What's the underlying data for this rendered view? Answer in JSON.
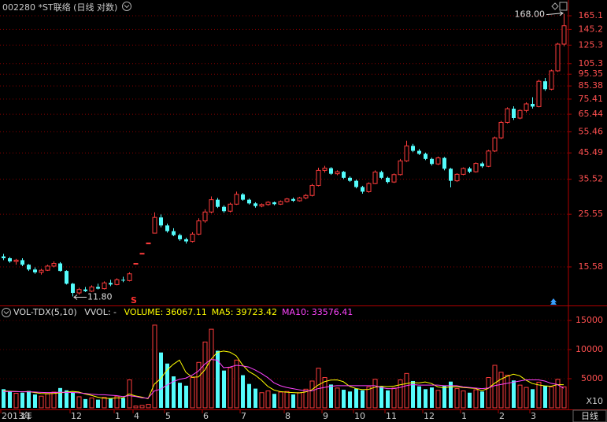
{
  "chart_data": [
    {
      "type": "candlestick",
      "title": "002280 *ST联络 (日线 对数)",
      "log_scale": true,
      "grid": true,
      "up_color": "#ff3c3c",
      "down_color": "#54fcfc",
      "ylim": [
        10.84,
        170.1
      ],
      "yticks": [
        165.1,
        145.2,
        125.3,
        105.3,
        95.35,
        85.38,
        75.41,
        65.44,
        55.46,
        45.49,
        35.52,
        25.55,
        15.58
      ],
      "high_label": {
        "value": 168.0,
        "label": "168.00"
      },
      "low_label": {
        "value": 11.8,
        "label": "11.80"
      },
      "signal_label": "S",
      "period_label": "日线",
      "categories": [
        "2013年",
        null,
        null,
        "11",
        null,
        null,
        null,
        null,
        null,
        null,
        null,
        "12",
        null,
        null,
        null,
        null,
        null,
        null,
        "1",
        null,
        null,
        "4",
        null,
        null,
        null,
        null,
        "5",
        null,
        null,
        null,
        null,
        null,
        "6",
        null,
        null,
        null,
        null,
        null,
        "7",
        null,
        null,
        null,
        null,
        null,
        null,
        "8",
        null,
        null,
        null,
        null,
        null,
        "9",
        null,
        null,
        null,
        null,
        "10",
        null,
        null,
        null,
        null,
        "11",
        null,
        null,
        null,
        null,
        null,
        "12",
        null,
        null,
        null,
        null,
        null,
        "1",
        null,
        null,
        null,
        null,
        null,
        "2",
        null,
        null,
        null,
        null,
        "3",
        null,
        null,
        null,
        null,
        null
      ],
      "ohlc": [
        [
          17.2,
          17.6,
          16.6,
          16.9
        ],
        [
          16.9,
          17.1,
          16.2,
          16.4
        ],
        [
          16.4,
          16.8,
          15.9,
          16.6
        ],
        [
          16.6,
          16.9,
          15.7,
          15.9
        ],
        [
          15.9,
          16.0,
          15.0,
          15.2
        ],
        [
          15.2,
          15.5,
          14.6,
          14.8
        ],
        [
          14.8,
          15.3,
          14.5,
          15.1
        ],
        [
          15.1,
          15.9,
          15.0,
          15.7
        ],
        [
          15.7,
          16.4,
          15.5,
          16.1
        ],
        [
          16.1,
          16.3,
          14.9,
          15.0
        ],
        [
          15.0,
          15.1,
          13.2,
          13.3
        ],
        [
          13.3,
          13.4,
          11.8,
          12.2
        ],
        [
          12.2,
          12.8,
          12.0,
          12.6
        ],
        [
          12.6,
          12.9,
          12.3,
          12.4
        ],
        [
          12.4,
          13.1,
          12.3,
          12.9
        ],
        [
          12.9,
          13.3,
          12.6,
          12.7
        ],
        [
          12.7,
          13.6,
          12.6,
          13.4
        ],
        [
          13.4,
          13.8,
          13.0,
          13.2
        ],
        [
          13.2,
          14.0,
          13.1,
          13.8
        ],
        [
          13.8,
          14.2,
          13.5,
          13.7
        ],
        [
          13.7,
          14.8,
          13.6,
          14.6
        ],
        [
          16.1,
          16.1,
          16.1,
          16.1
        ],
        [
          17.7,
          17.7,
          17.7,
          17.7
        ],
        [
          19.5,
          19.5,
          19.5,
          19.5
        ],
        [
          21.4,
          26.0,
          21.4,
          24.8
        ],
        [
          24.8,
          25.5,
          22.6,
          23.0
        ],
        [
          23.0,
          23.4,
          21.5,
          21.8
        ],
        [
          21.8,
          22.4,
          20.8,
          21.0
        ],
        [
          21.0,
          21.3,
          19.9,
          20.2
        ],
        [
          20.2,
          20.5,
          19.4,
          19.8
        ],
        [
          19.8,
          21.6,
          19.6,
          21.2
        ],
        [
          21.2,
          24.6,
          21.0,
          24.0
        ],
        [
          24.0,
          26.8,
          23.6,
          26.1
        ],
        [
          26.1,
          30.2,
          25.8,
          29.3
        ],
        [
          29.3,
          29.8,
          27.1,
          27.4
        ],
        [
          27.4,
          27.8,
          25.9,
          26.3
        ],
        [
          26.3,
          28.5,
          26.0,
          28.1
        ],
        [
          28.1,
          31.6,
          27.9,
          30.8
        ],
        [
          30.8,
          31.2,
          29.0,
          29.3
        ],
        [
          29.3,
          29.6,
          28.0,
          28.3
        ],
        [
          28.3,
          28.6,
          27.2,
          27.6
        ],
        [
          27.6,
          28.3,
          27.3,
          28.0
        ],
        [
          28.0,
          28.9,
          27.7,
          28.6
        ],
        [
          28.6,
          28.8,
          27.8,
          28.1
        ],
        [
          28.1,
          29.1,
          27.9,
          28.8
        ],
        [
          28.8,
          29.8,
          28.5,
          29.5
        ],
        [
          29.5,
          29.9,
          28.7,
          29.0
        ],
        [
          29.0,
          30.1,
          28.8,
          29.8
        ],
        [
          29.8,
          30.9,
          29.4,
          30.5
        ],
        [
          30.5,
          34.0,
          30.2,
          33.5
        ],
        [
          33.5,
          39.6,
          33.2,
          38.6
        ],
        [
          38.6,
          40.3,
          37.8,
          39.4
        ],
        [
          39.4,
          39.8,
          37.0,
          37.4
        ],
        [
          37.4,
          38.6,
          36.9,
          38.1
        ],
        [
          38.1,
          38.4,
          35.6,
          36.0
        ],
        [
          36.0,
          36.5,
          34.6,
          35.0
        ],
        [
          35.0,
          35.4,
          32.6,
          33.0
        ],
        [
          33.0,
          33.4,
          31.0,
          31.6
        ],
        [
          31.6,
          34.5,
          31.3,
          34.1
        ],
        [
          34.1,
          38.6,
          33.9,
          38.0
        ],
        [
          38.0,
          38.5,
          35.6,
          36.0
        ],
        [
          36.0,
          36.4,
          34.1,
          34.6
        ],
        [
          34.6,
          37.5,
          34.3,
          37.1
        ],
        [
          37.1,
          43.0,
          36.8,
          42.2
        ],
        [
          42.2,
          51.0,
          41.8,
          48.6
        ],
        [
          48.6,
          49.5,
          45.8,
          46.4
        ],
        [
          46.4,
          47.2,
          44.6,
          45.1
        ],
        [
          45.1,
          45.6,
          42.5,
          43.0
        ],
        [
          43.0,
          43.5,
          40.4,
          41.0
        ],
        [
          41.0,
          44.0,
          40.6,
          43.4
        ],
        [
          43.4,
          43.8,
          38.6,
          39.2
        ],
        [
          39.2,
          39.5,
          32.9,
          35.0
        ],
        [
          35.0,
          37.6,
          34.6,
          37.2
        ],
        [
          37.2,
          39.7,
          36.9,
          39.3
        ],
        [
          39.3,
          39.9,
          37.6,
          38.1
        ],
        [
          38.1,
          41.6,
          37.8,
          41.2
        ],
        [
          41.2,
          41.8,
          39.5,
          40.1
        ],
        [
          40.1,
          46.8,
          39.8,
          46.3
        ],
        [
          46.3,
          53.0,
          45.9,
          52.4
        ],
        [
          52.4,
          61.5,
          51.8,
          60.6
        ],
        [
          60.6,
          69.8,
          60.0,
          68.9
        ],
        [
          68.9,
          70.5,
          62.0,
          63.1
        ],
        [
          63.1,
          68.5,
          62.4,
          67.8
        ],
        [
          67.8,
          73.2,
          66.5,
          72.1
        ],
        [
          72.1,
          76.8,
          69.0,
          70.3
        ],
        [
          70.3,
          90.5,
          69.8,
          89.2
        ],
        [
          89.2,
          92.0,
          81.5,
          82.8
        ],
        [
          82.8,
          99.6,
          82.0,
          98.4
        ],
        [
          98.4,
          128.0,
          97.5,
          126.5
        ],
        [
          126.5,
          168.0,
          124.0,
          150.3
        ]
      ]
    },
    {
      "type": "volume",
      "indicator": "VOL-TDX(5,10)",
      "vvol_label": "VVOL: -",
      "unit_label": "X10",
      "grid": true,
      "ylim": [
        0,
        17300
      ],
      "yticks": [
        5000,
        10000,
        15000
      ],
      "series": [
        {
          "name": "VOLUME:",
          "color": "#ffff00",
          "last_value": 36067.11,
          "values": [
            3200,
            2800,
            2500,
            2600,
            2900,
            2300,
            2000,
            2400,
            2700,
            3400,
            3000,
            2600,
            1900,
            1500,
            1700,
            1400,
            1800,
            1600,
            2000,
            1700,
            4800,
            300,
            400,
            600,
            14200,
            9500,
            7600,
            5400,
            4300,
            3800,
            5200,
            7800,
            11300,
            13500,
            9800,
            6400,
            6900,
            8200,
            5600,
            4100,
            3300,
            2600,
            2900,
            2400,
            2700,
            2800,
            2300,
            2600,
            3200,
            4600,
            6800,
            5200,
            4000,
            3400,
            3100,
            2800,
            3300,
            3000,
            3600,
            4900,
            3700,
            3000,
            3400,
            4800,
            5900,
            4600,
            3700,
            3200,
            3500,
            3000,
            3800,
            4500,
            3300,
            2900,
            2600,
            3100,
            2800,
            5200,
            7300,
            6100,
            5600,
            4700,
            3900,
            3500,
            3200,
            4400,
            3800,
            3600,
            4900,
            3607
          ]
        },
        {
          "name": "MA5:",
          "color": "#ffff00",
          "last_value": 39723.42,
          "values": [
            2900,
            2850,
            2800,
            2750,
            2800,
            2620,
            2460,
            2440,
            2460,
            2560,
            2700,
            2820,
            2720,
            2380,
            2140,
            1820,
            1660,
            1600,
            1700,
            1700,
            2380,
            2040,
            1840,
            1560,
            4060,
            5000,
            6460,
            7460,
            8200,
            6120,
            5260,
            5300,
            6480,
            8320,
            9520,
            9740,
            9560,
            8940,
            7380,
            6240,
            5620,
            4760,
            3700,
            3060,
            2780,
            2680,
            2620,
            2560,
            2720,
            3100,
            3900,
            4480,
            4760,
            4800,
            4500,
            3700,
            3320,
            3120,
            3160,
            3520,
            3700,
            3640,
            3720,
            3960,
            4160,
            4340,
            4280,
            4440,
            4180,
            3600,
            3440,
            3600,
            3620,
            3500,
            3420,
            3320,
            2940,
            3320,
            4200,
            4900,
            5400,
            5780,
            5520,
            4760,
            4180,
            3940,
            3760,
            3700,
            3980,
            3972
          ]
        },
        {
          "name": "MA10:",
          "color": "#ff44ff",
          "last_value": 33576.41,
          "values": [
            2800,
            2800,
            2780,
            2760,
            2760,
            2720,
            2660,
            2620,
            2620,
            2680,
            2660,
            2640,
            2580,
            2470,
            2350,
            2260,
            2240,
            2160,
            2090,
            1920,
            2100,
            1950,
            1730,
            1650,
            2900,
            3200,
            3900,
            4500,
            4900,
            5100,
            5600,
            6300,
            7500,
            8300,
            8200,
            6900,
            7000,
            7300,
            7200,
            7000,
            6500,
            5900,
            5200,
            4300,
            3800,
            3500,
            3300,
            3100,
            2900,
            2900,
            3300,
            3500,
            3700,
            3800,
            3800,
            3800,
            3800,
            3800,
            3800,
            3800,
            3500,
            3300,
            3300,
            3500,
            3800,
            4000,
            3900,
            3900,
            3900,
            3900,
            3800,
            3800,
            3800,
            3600,
            3500,
            3400,
            3300,
            3400,
            3800,
            4000,
            4200,
            4400,
            4600,
            4800,
            4800,
            4800,
            4600,
            4200,
            4000,
            3358
          ]
        }
      ]
    }
  ]
}
